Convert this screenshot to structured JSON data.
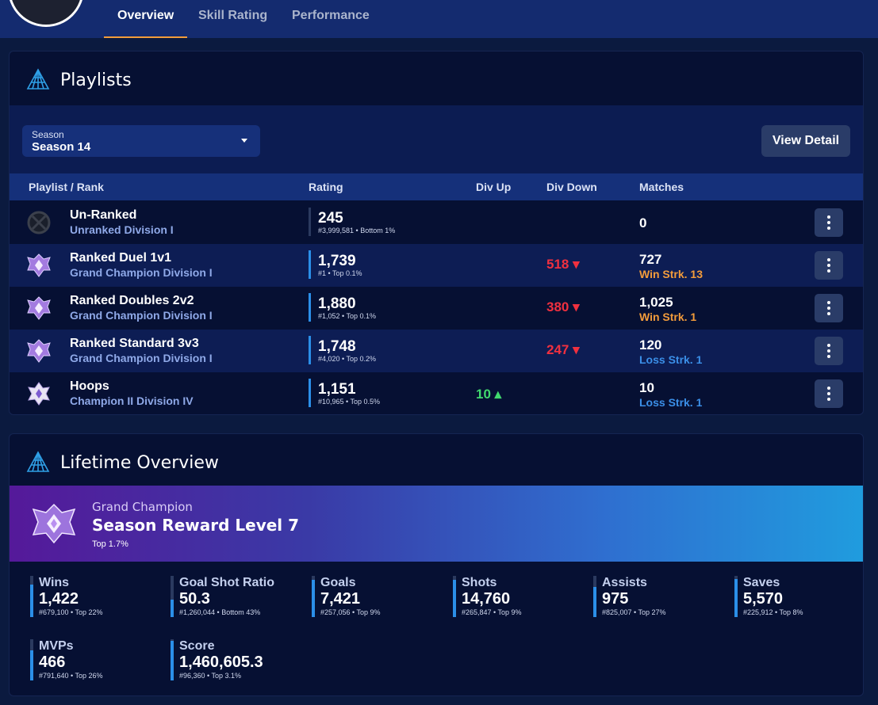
{
  "tabs": [
    {
      "label": "Overview",
      "active": true
    },
    {
      "label": "Skill Rating",
      "active": false
    },
    {
      "label": "Performance",
      "active": false
    }
  ],
  "playlists": {
    "title": "Playlists",
    "season_select": {
      "label": "Season",
      "value": "Season 14"
    },
    "view_detail": "View Detail",
    "columns": [
      "Playlist / Rank",
      "Rating",
      "Div Up",
      "Div Down",
      "Matches"
    ],
    "rows": [
      {
        "icon": "unranked-icon",
        "name": "Un-Ranked",
        "rank": "Unranked Division I",
        "rating": "245",
        "rating_sub": "#3,999,581 • Bottom 1%",
        "rating_fill": 0.0,
        "div_up": "",
        "div_down": "",
        "matches": "0",
        "streak": ""
      },
      {
        "icon": "grand-champion-icon",
        "name": "Ranked Duel 1v1",
        "rank": "Grand Champion Division I",
        "rating": "1,739",
        "rating_sub": "#1 • Top 0.1%",
        "rating_fill": 1.0,
        "div_up": "",
        "div_down": "518 ▾",
        "matches": "727",
        "streak": "Win Strk. 13",
        "streak_type": "win"
      },
      {
        "icon": "grand-champion-icon",
        "name": "Ranked Doubles 2v2",
        "rank": "Grand Champion Division I",
        "rating": "1,880",
        "rating_sub": "#1,052 • Top 0.1%",
        "rating_fill": 1.0,
        "div_up": "",
        "div_down": "380 ▾",
        "matches": "1,025",
        "streak": "Win Strk. 1",
        "streak_type": "win"
      },
      {
        "icon": "grand-champion-icon",
        "name": "Ranked Standard 3v3",
        "rank": "Grand Champion Division I",
        "rating": "1,748",
        "rating_sub": "#4,020 • Top 0.2%",
        "rating_fill": 1.0,
        "div_up": "",
        "div_down": "247 ▾",
        "matches": "120",
        "streak": "Loss Strk. 1",
        "streak_type": "loss"
      },
      {
        "icon": "champion-icon",
        "name": "Hoops",
        "rank": "Champion II Division IV",
        "rating": "1,151",
        "rating_sub": "#10,965 • Top 0.5%",
        "rating_fill": 1.0,
        "div_up": "10 ▴",
        "div_down": "",
        "matches": "10",
        "streak": "Loss Strk. 1",
        "streak_type": "loss"
      }
    ]
  },
  "lifetime": {
    "title": "Lifetime Overview",
    "banner": {
      "subtitle": "Grand Champion",
      "title": "Season Reward Level 7",
      "note": "Top 1.7%"
    },
    "stats": [
      {
        "label": "Wins",
        "value": "1,422",
        "sub": "#679,100 • Top 22%",
        "fill": 0.78
      },
      {
        "label": "Goal Shot Ratio",
        "value": "50.3",
        "sub": "#1,260,044 • Bottom 43%",
        "fill": 0.43
      },
      {
        "label": "Goals",
        "value": "7,421",
        "sub": "#257,056 • Top 9%",
        "fill": 0.91
      },
      {
        "label": "Shots",
        "value": "14,760",
        "sub": "#265,847 • Top 9%",
        "fill": 0.91
      },
      {
        "label": "Assists",
        "value": "975",
        "sub": "#825,007 • Top 27%",
        "fill": 0.73
      },
      {
        "label": "Saves",
        "value": "5,570",
        "sub": "#225,912 • Top 8%",
        "fill": 0.92
      },
      {
        "label": "MVPs",
        "value": "466",
        "sub": "#791,640 • Top 26%",
        "fill": 0.74
      },
      {
        "label": "Score",
        "value": "1,460,605.3",
        "sub": "#96,360 • Top 3.1%",
        "fill": 0.97
      }
    ]
  },
  "colors": {
    "accent_tab": "#f39c3b",
    "win": "#f39c3b",
    "loss": "#3b8fe8",
    "div_up": "#41d96e",
    "div_down": "#f0303f",
    "bar": "#2b8fe8"
  }
}
